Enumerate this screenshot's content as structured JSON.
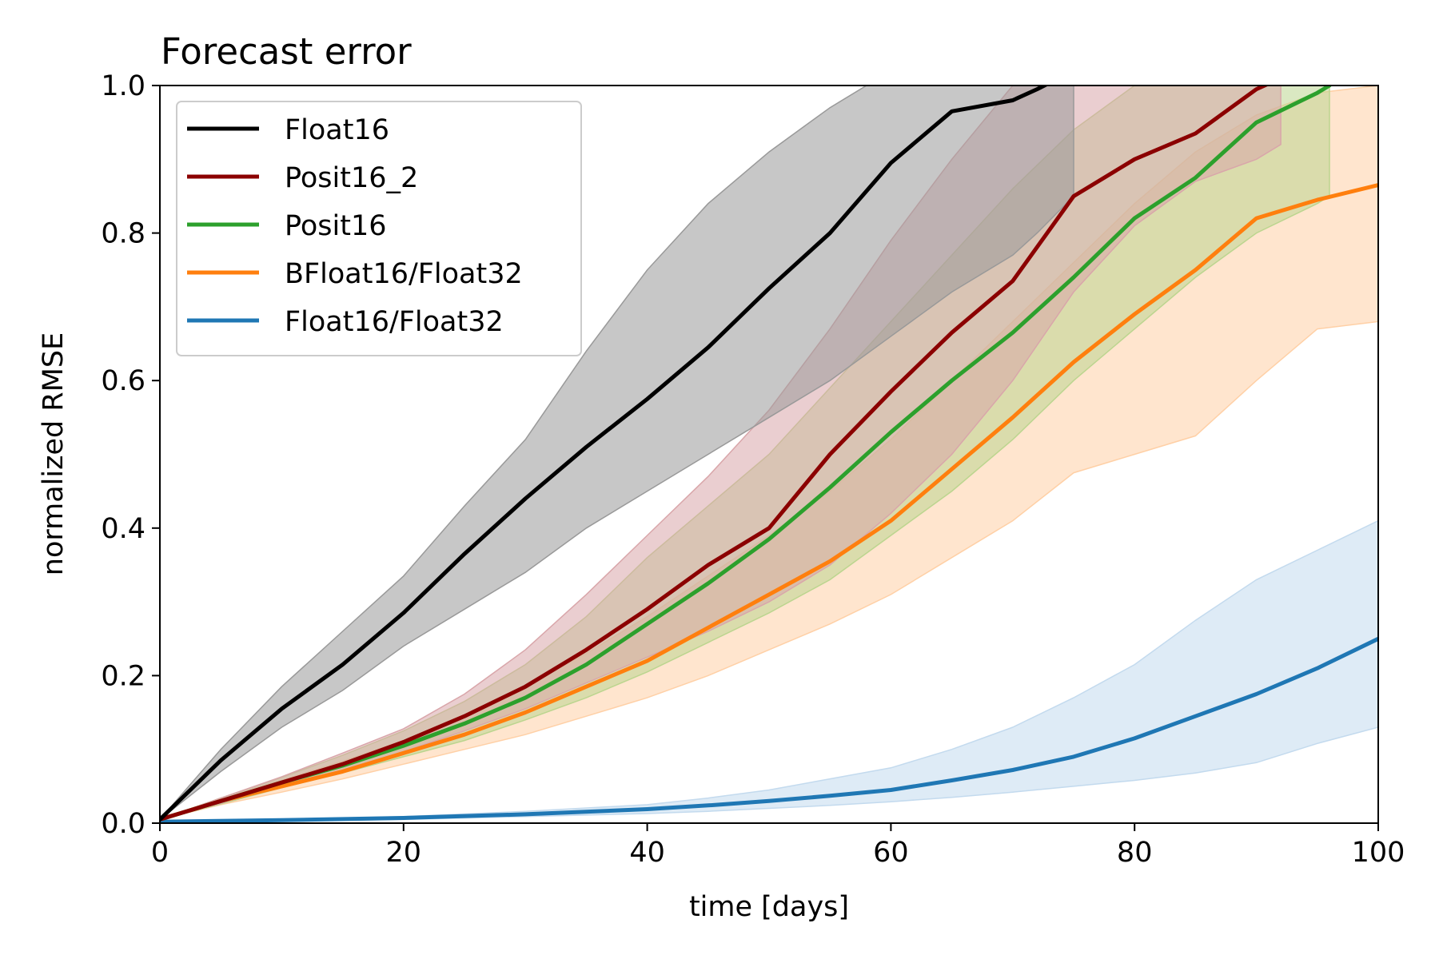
{
  "chart_data": {
    "type": "line",
    "title": "Forecast error",
    "xlabel": "time [days]",
    "ylabel": "normalized RMSE",
    "xlim": [
      0,
      100
    ],
    "ylim": [
      0,
      1
    ],
    "xticks": [
      0,
      20,
      40,
      60,
      80,
      100
    ],
    "xtick_labels": [
      "0",
      "20",
      "40",
      "60",
      "80",
      "100"
    ],
    "yticks": [
      0,
      0.2,
      0.4,
      0.6,
      0.8,
      1.0
    ],
    "ytick_labels": [
      "0.0",
      "0.2",
      "0.4",
      "0.6",
      "0.8",
      "1.0"
    ],
    "grid": false,
    "legend_position": "top-left",
    "series": [
      {
        "name": "Float16",
        "color": "#000000",
        "band_color": "#999999",
        "x": [
          0,
          5,
          10,
          15,
          20,
          25,
          30,
          35,
          40,
          45,
          50,
          55,
          60,
          65,
          70,
          72,
          75
        ],
        "y": [
          0.005,
          0.085,
          0.155,
          0.215,
          0.285,
          0.365,
          0.44,
          0.51,
          0.575,
          0.645,
          0.725,
          0.8,
          0.895,
          0.965,
          0.98,
          0.995,
          1.02
        ],
        "lower": [
          0.005,
          0.07,
          0.13,
          0.18,
          0.24,
          0.29,
          0.34,
          0.4,
          0.45,
          0.5,
          0.55,
          0.6,
          0.66,
          0.72,
          0.77,
          0.8,
          0.85
        ],
        "upper": [
          0.005,
          0.1,
          0.185,
          0.26,
          0.335,
          0.43,
          0.52,
          0.64,
          0.75,
          0.84,
          0.91,
          0.97,
          1.02,
          1.05,
          1.05,
          1.05,
          1.05
        ]
      },
      {
        "name": "Posit16_2",
        "color": "#8b0000",
        "band_color": "#d9a6aa",
        "x": [
          0,
          5,
          10,
          15,
          20,
          25,
          30,
          35,
          40,
          45,
          50,
          55,
          60,
          65,
          70,
          75,
          80,
          85,
          90,
          92
        ],
        "y": [
          0.005,
          0.03,
          0.055,
          0.08,
          0.11,
          0.145,
          0.185,
          0.235,
          0.29,
          0.35,
          0.4,
          0.5,
          0.585,
          0.665,
          0.735,
          0.85,
          0.9,
          0.935,
          0.995,
          1.01
        ],
        "lower": [
          0.005,
          0.027,
          0.05,
          0.072,
          0.097,
          0.125,
          0.155,
          0.19,
          0.225,
          0.26,
          0.3,
          0.35,
          0.42,
          0.5,
          0.6,
          0.72,
          0.81,
          0.87,
          0.9,
          0.92
        ],
        "upper": [
          0.005,
          0.034,
          0.063,
          0.095,
          0.128,
          0.175,
          0.235,
          0.31,
          0.39,
          0.47,
          0.56,
          0.67,
          0.79,
          0.9,
          1.0,
          1.03,
          1.04,
          1.04,
          1.04,
          1.04
        ]
      },
      {
        "name": "Posit16",
        "color": "#2ca02c",
        "band_color": "#bcd58f",
        "x": [
          0,
          5,
          10,
          15,
          20,
          25,
          30,
          35,
          40,
          45,
          50,
          55,
          60,
          65,
          70,
          75,
          80,
          85,
          90,
          95,
          96
        ],
        "y": [
          0.005,
          0.03,
          0.055,
          0.078,
          0.105,
          0.135,
          0.17,
          0.215,
          0.27,
          0.325,
          0.385,
          0.455,
          0.53,
          0.6,
          0.665,
          0.74,
          0.82,
          0.875,
          0.95,
          0.99,
          1.0
        ],
        "lower": [
          0.005,
          0.026,
          0.048,
          0.068,
          0.09,
          0.112,
          0.14,
          0.17,
          0.205,
          0.245,
          0.285,
          0.33,
          0.39,
          0.45,
          0.52,
          0.6,
          0.67,
          0.74,
          0.8,
          0.84,
          0.85
        ],
        "upper": [
          0.005,
          0.034,
          0.062,
          0.092,
          0.125,
          0.165,
          0.215,
          0.28,
          0.36,
          0.43,
          0.5,
          0.59,
          0.68,
          0.77,
          0.86,
          0.94,
          1.0,
          1.03,
          1.04,
          1.04,
          1.04
        ]
      },
      {
        "name": "BFloat16/Float32",
        "color": "#ff7f0e",
        "band_color": "#ffd0a6",
        "x": [
          0,
          5,
          10,
          15,
          20,
          25,
          30,
          35,
          40,
          45,
          50,
          55,
          60,
          65,
          70,
          75,
          80,
          85,
          90,
          95,
          100
        ],
        "y": [
          0.005,
          0.03,
          0.05,
          0.07,
          0.095,
          0.12,
          0.15,
          0.185,
          0.22,
          0.265,
          0.31,
          0.355,
          0.41,
          0.48,
          0.55,
          0.625,
          0.69,
          0.75,
          0.82,
          0.845,
          0.865
        ],
        "lower": [
          0.005,
          0.025,
          0.042,
          0.06,
          0.08,
          0.1,
          0.12,
          0.145,
          0.17,
          0.2,
          0.235,
          0.27,
          0.31,
          0.36,
          0.41,
          0.475,
          0.5,
          0.525,
          0.6,
          0.67,
          0.68
        ],
        "upper": [
          0.005,
          0.034,
          0.058,
          0.084,
          0.112,
          0.145,
          0.185,
          0.23,
          0.28,
          0.335,
          0.39,
          0.45,
          0.52,
          0.6,
          0.68,
          0.76,
          0.84,
          0.91,
          0.96,
          0.99,
          1.0
        ]
      },
      {
        "name": "Float16/Float32",
        "color": "#1f77b4",
        "band_color": "#c3daee",
        "x": [
          0,
          10,
          20,
          30,
          40,
          45,
          50,
          55,
          60,
          65,
          70,
          75,
          80,
          85,
          90,
          95,
          100
        ],
        "y": [
          0.002,
          0.004,
          0.007,
          0.012,
          0.019,
          0.024,
          0.03,
          0.037,
          0.045,
          0.058,
          0.072,
          0.09,
          0.115,
          0.145,
          0.175,
          0.21,
          0.25
        ],
        "lower": [
          0.002,
          0.003,
          0.005,
          0.009,
          0.013,
          0.016,
          0.02,
          0.024,
          0.029,
          0.035,
          0.042,
          0.05,
          0.058,
          0.068,
          0.082,
          0.108,
          0.13
        ],
        "upper": [
          0.002,
          0.005,
          0.009,
          0.016,
          0.025,
          0.034,
          0.045,
          0.06,
          0.075,
          0.1,
          0.13,
          0.17,
          0.215,
          0.275,
          0.33,
          0.37,
          0.41
        ]
      }
    ]
  }
}
